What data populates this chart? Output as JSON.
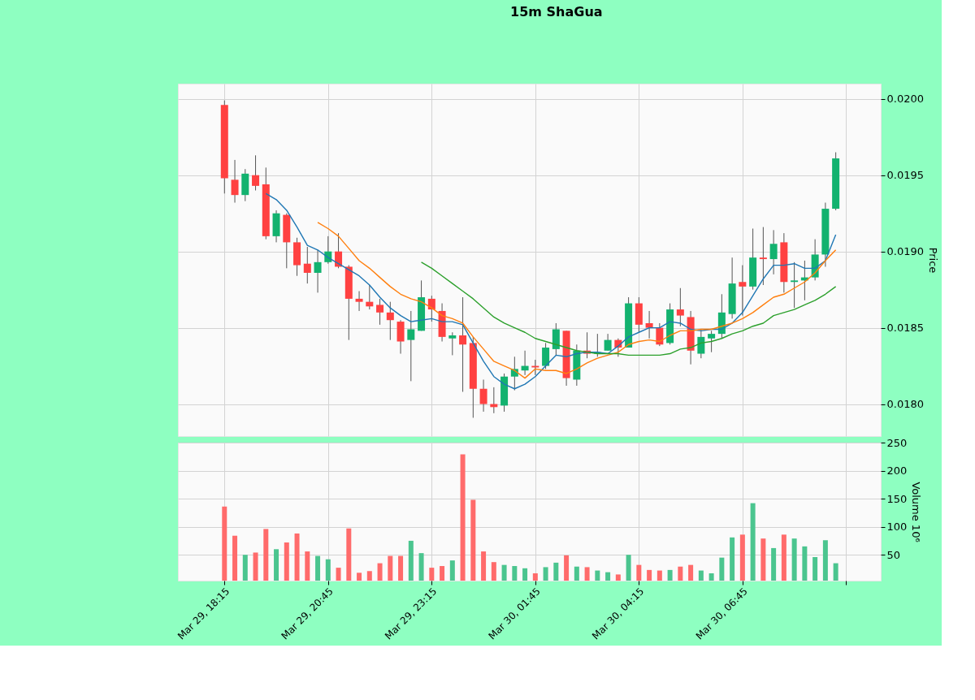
{
  "chart_data": [
    {
      "type": "candlestick",
      "title": "15m ShaGua",
      "ylabel": "Price",
      "grid": true,
      "tick_labels": "y",
      "categories": [
        "Mar 29, 18:15",
        null,
        null,
        null,
        null,
        null,
        null,
        null,
        null,
        null,
        "Mar 29, 20:45",
        null,
        null,
        null,
        null,
        null,
        null,
        null,
        null,
        null,
        "Mar 29, 23:15",
        null,
        null,
        null,
        null,
        null,
        null,
        null,
        null,
        null,
        "Mar 30, 01:45",
        null,
        null,
        null,
        null,
        null,
        null,
        null,
        null,
        null,
        "Mar 30, 04:15",
        null,
        null,
        null,
        null,
        null,
        null,
        null,
        null,
        null,
        "Mar 30, 06:45",
        null,
        null,
        null,
        null,
        null,
        null,
        null,
        null,
        null
      ],
      "ohlc": [
        [
          0.01996,
          0.01999,
          0.01938,
          0.01948
        ],
        [
          0.01947,
          0.0196,
          0.01932,
          0.01937
        ],
        [
          0.01937,
          0.01954,
          0.01933,
          0.01951
        ],
        [
          0.0195,
          0.01963,
          0.0194,
          0.01943
        ],
        [
          0.01944,
          0.01955,
          0.01908,
          0.0191
        ],
        [
          0.0191,
          0.01927,
          0.01906,
          0.01925
        ],
        [
          0.01924,
          0.01925,
          0.01889,
          0.01906
        ],
        [
          0.01906,
          0.01909,
          0.01884,
          0.01891
        ],
        [
          0.01892,
          0.01903,
          0.01879,
          0.01886
        ],
        [
          0.01886,
          0.01901,
          0.01873,
          0.01893
        ],
        [
          0.01893,
          0.0191,
          0.01892,
          0.019
        ],
        [
          0.019,
          0.01912,
          0.01889,
          0.0189
        ],
        [
          0.0189,
          0.01891,
          0.01842,
          0.01869
        ],
        [
          0.01869,
          0.01874,
          0.01861,
          0.01867
        ],
        [
          0.01867,
          0.01878,
          0.01862,
          0.01864
        ],
        [
          0.01865,
          0.01869,
          0.01852,
          0.0186
        ],
        [
          0.0186,
          0.01867,
          0.01842,
          0.01855
        ],
        [
          0.01854,
          0.01855,
          0.01833,
          0.01841
        ],
        [
          0.01842,
          0.01861,
          0.01815,
          0.01849
        ],
        [
          0.01848,
          0.01881,
          0.01848,
          0.0187
        ],
        [
          0.01869,
          0.01871,
          0.01854,
          0.01862
        ],
        [
          0.01861,
          0.01866,
          0.01841,
          0.01844
        ],
        [
          0.01843,
          0.01847,
          0.01832,
          0.01845
        ],
        [
          0.01845,
          0.0187,
          0.01808,
          0.01839
        ],
        [
          0.0184,
          0.01844,
          0.01791,
          0.0181
        ],
        [
          0.0181,
          0.01816,
          0.01795,
          0.018
        ],
        [
          0.018,
          0.01811,
          0.01794,
          0.01798
        ],
        [
          0.01799,
          0.0182,
          0.01795,
          0.01818
        ],
        [
          0.01818,
          0.01831,
          0.01809,
          0.01823
        ],
        [
          0.01822,
          0.01835,
          0.01819,
          0.01825
        ],
        [
          0.01825,
          0.01829,
          0.01819,
          0.01824
        ],
        [
          0.01825,
          0.0184,
          0.01823,
          0.01837
        ],
        [
          0.01836,
          0.01853,
          0.01832,
          0.01849
        ],
        [
          0.01848,
          0.01848,
          0.01812,
          0.01817
        ],
        [
          0.01816,
          0.01839,
          0.01812,
          0.01835
        ],
        [
          0.01835,
          0.01847,
          0.0183,
          0.01833
        ],
        [
          0.01833,
          0.01846,
          0.01831,
          0.01834
        ],
        [
          0.01835,
          0.01846,
          0.01835,
          0.01842
        ],
        [
          0.01842,
          0.01843,
          0.01831,
          0.01837
        ],
        [
          0.01837,
          0.0187,
          0.01837,
          0.01866
        ],
        [
          0.01866,
          0.0187,
          0.01847,
          0.01852
        ],
        [
          0.01853,
          0.01861,
          0.01843,
          0.0185
        ],
        [
          0.0185,
          0.01853,
          0.01838,
          0.01839
        ],
        [
          0.0184,
          0.01866,
          0.01839,
          0.01862
        ],
        [
          0.01862,
          0.01876,
          0.01851,
          0.01858
        ],
        [
          0.01857,
          0.01861,
          0.01826,
          0.01835
        ],
        [
          0.01833,
          0.01849,
          0.0183,
          0.01844
        ],
        [
          0.01843,
          0.01848,
          0.01834,
          0.01846
        ],
        [
          0.01846,
          0.01872,
          0.01843,
          0.0186
        ],
        [
          0.01859,
          0.01896,
          0.01856,
          0.01879
        ],
        [
          0.0188,
          0.01891,
          0.01858,
          0.01877
        ],
        [
          0.01877,
          0.01915,
          0.01875,
          0.01896
        ],
        [
          0.01896,
          0.01916,
          0.01878,
          0.01895
        ],
        [
          0.01895,
          0.01914,
          0.01885,
          0.01905
        ],
        [
          0.01906,
          0.01912,
          0.01873,
          0.0188
        ],
        [
          0.0188,
          0.01893,
          0.01863,
          0.01881
        ],
        [
          0.01881,
          0.01894,
          0.01868,
          0.01883
        ],
        [
          0.01883,
          0.01908,
          0.01881,
          0.01898
        ],
        [
          0.01898,
          0.01932,
          0.0189,
          0.01928
        ],
        [
          0.01928,
          0.01965,
          0.01927,
          0.01961
        ]
      ],
      "colors": [
        "#ff4141",
        "#ff4141",
        "#13b26f",
        "#ff4141",
        "#ff4141",
        "#13b26f",
        "#ff4141",
        "#ff4141",
        "#ff4141",
        "#13b26f",
        "#13b26f",
        "#ff4141",
        "#ff4141",
        "#ff4141",
        "#ff4141",
        "#ff4141",
        "#ff4141",
        "#ff4141",
        "#13b26f",
        "#13b26f",
        "#ff4141",
        "#ff4141",
        "#13b26f",
        "#ff4141",
        "#ff4141",
        "#ff4141",
        "#ff4141",
        "#13b26f",
        "#13b26f",
        "#13b26f",
        "#ff4141",
        "#13b26f",
        "#13b26f",
        "#ff4141",
        "#13b26f",
        "#ff4141",
        "#13b26f",
        "#13b26f",
        "#ff4141",
        "#13b26f",
        "#ff4141",
        "#ff4141",
        "#ff4141",
        "#13b26f",
        "#ff4141",
        "#ff4141",
        "#13b26f",
        "#13b26f",
        "#13b26f",
        "#13b26f",
        "#ff4141",
        "#13b26f",
        "#ff4141",
        "#13b26f",
        "#ff4141",
        "#13b26f",
        "#13b26f",
        "#13b26f",
        "#13b26f",
        "#13b26f"
      ],
      "series": [
        {
          "type": "line",
          "color": "#1f77b4",
          "values": [
            null,
            null,
            null,
            null,
            0.01938,
            0.01934,
            0.01927,
            0.01916,
            0.01904,
            0.01901,
            0.01896,
            0.01892,
            0.01888,
            0.01884,
            0.01878,
            0.0187,
            0.01863,
            0.01858,
            0.01854,
            0.01855,
            0.01856,
            0.01854,
            0.01854,
            0.01852,
            0.0184,
            0.01828,
            0.01818,
            0.01813,
            0.0181,
            0.01813,
            0.01818,
            0.01825,
            0.01832,
            0.01831,
            0.01833,
            0.01834,
            0.01834,
            0.01833,
            0.01838,
            0.01844,
            0.01847,
            0.0185,
            0.0185,
            0.01854,
            0.01853,
            0.01849,
            0.01848,
            0.01849,
            0.01849,
            0.01853,
            0.0186,
            0.01871,
            0.01882,
            0.01891,
            0.01891,
            0.01892,
            0.01889,
            0.01889,
            0.01894,
            0.01911
          ]
        },
        {
          "type": "line",
          "color": "#ff7f0e",
          "values": [
            null,
            null,
            null,
            null,
            null,
            null,
            null,
            null,
            null,
            0.01919,
            0.01915,
            0.0191,
            0.01902,
            0.01894,
            0.01889,
            0.01883,
            0.01877,
            0.01872,
            0.01869,
            0.01867,
            0.01863,
            0.01858,
            0.01856,
            0.01853,
            0.01844,
            0.01836,
            0.01828,
            0.01825,
            0.01822,
            0.01817,
            0.01823,
            0.01822,
            0.01822,
            0.0182,
            0.01823,
            0.01827,
            0.0183,
            0.01832,
            0.01834,
            0.01839,
            0.01841,
            0.01842,
            0.01841,
            0.01845,
            0.01848,
            0.01848,
            0.01849,
            0.01849,
            0.01851,
            0.01853,
            0.01856,
            0.0186,
            0.01865,
            0.0187,
            0.01872,
            0.01876,
            0.0188,
            0.01886,
            0.01894,
            0.01901
          ]
        },
        {
          "type": "line",
          "color": "#2ca02c",
          "values": [
            null,
            null,
            null,
            null,
            null,
            null,
            null,
            null,
            null,
            null,
            null,
            null,
            null,
            null,
            null,
            null,
            null,
            null,
            null,
            0.01893,
            0.01889,
            0.01884,
            0.01879,
            0.01874,
            0.01869,
            0.01863,
            0.01857,
            0.01853,
            0.0185,
            0.01847,
            0.01843,
            0.01841,
            0.01839,
            0.01837,
            0.01835,
            0.01834,
            0.01833,
            0.01833,
            0.01833,
            0.01832,
            0.01832,
            0.01832,
            0.01832,
            0.01833,
            0.01836,
            0.01837,
            0.0184,
            0.01841,
            0.01843,
            0.01846,
            0.01848,
            0.01851,
            0.01853,
            0.01858,
            0.0186,
            0.01862,
            0.01865,
            0.01868,
            0.01872,
            0.01877
          ]
        }
      ],
      "ylim": [
        0.01779,
        0.0201
      ],
      "yticks": [
        {
          "value": 0.018,
          "label": "0.0180"
        },
        {
          "value": 0.0185,
          "label": "0.0185"
        },
        {
          "value": 0.019,
          "label": "0.0190"
        },
        {
          "value": 0.0195,
          "label": "0.0195"
        },
        {
          "value": 0.02,
          "label": "0.0200"
        }
      ]
    },
    {
      "type": "bar",
      "ylabel": "Volume  10⁶",
      "grid": true,
      "categories": [
        "Mar 29, 18:15",
        null,
        null,
        null,
        null,
        null,
        null,
        null,
        null,
        null,
        "Mar 29, 20:45",
        null,
        null,
        null,
        null,
        null,
        null,
        null,
        null,
        null,
        "Mar 29, 23:15",
        null,
        null,
        null,
        null,
        null,
        null,
        null,
        null,
        null,
        "Mar 30, 01:45",
        null,
        null,
        null,
        null,
        null,
        null,
        null,
        null,
        null,
        "Mar 30, 04:15",
        null,
        null,
        null,
        null,
        null,
        null,
        null,
        null,
        null,
        "Mar 30, 06:45",
        null,
        null,
        null,
        null,
        null,
        null,
        null,
        null,
        null
      ],
      "values": [
        136,
        84,
        50,
        54,
        96,
        60,
        72,
        88,
        56,
        48,
        42,
        27,
        97,
        18,
        21,
        35,
        48,
        48,
        75,
        53,
        27,
        30,
        40,
        229,
        148,
        56,
        37,
        32,
        30,
        26,
        17,
        28,
        36,
        49,
        29,
        28,
        22,
        19,
        15,
        50,
        32,
        23,
        22,
        23,
        29,
        32,
        22,
        17,
        45,
        81,
        86,
        142,
        79,
        62,
        86,
        79,
        65,
        46,
        76,
        35
      ],
      "colors": [
        "#ff6b6b",
        "#ff6b6b",
        "#4bc58f",
        "#ff6b6b",
        "#ff6b6b",
        "#4bc58f",
        "#ff6b6b",
        "#ff6b6b",
        "#ff6b6b",
        "#4bc58f",
        "#4bc58f",
        "#ff6b6b",
        "#ff6b6b",
        "#ff6b6b",
        "#ff6b6b",
        "#ff6b6b",
        "#ff6b6b",
        "#ff6b6b",
        "#4bc58f",
        "#4bc58f",
        "#ff6b6b",
        "#ff6b6b",
        "#4bc58f",
        "#ff6b6b",
        "#ff6b6b",
        "#ff6b6b",
        "#ff6b6b",
        "#4bc58f",
        "#4bc58f",
        "#4bc58f",
        "#ff6b6b",
        "#4bc58f",
        "#4bc58f",
        "#ff6b6b",
        "#4bc58f",
        "#ff6b6b",
        "#4bc58f",
        "#4bc58f",
        "#ff6b6b",
        "#4bc58f",
        "#ff6b6b",
        "#ff6b6b",
        "#ff6b6b",
        "#4bc58f",
        "#ff6b6b",
        "#ff6b6b",
        "#4bc58f",
        "#4bc58f",
        "#4bc58f",
        "#4bc58f",
        "#ff6b6b",
        "#4bc58f",
        "#ff6b6b",
        "#4bc58f",
        "#ff6b6b",
        "#4bc58f",
        "#4bc58f",
        "#4bc58f",
        "#4bc58f",
        "#4bc58f"
      ],
      "ylim": [
        4,
        250
      ],
      "yticks": [
        50,
        100,
        150,
        200,
        250
      ]
    }
  ]
}
